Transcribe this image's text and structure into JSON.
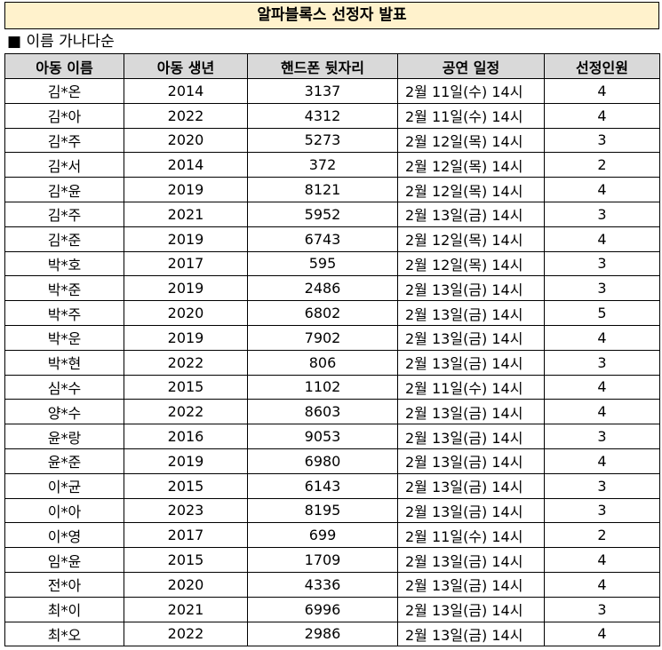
{
  "header": {
    "title": "알파블록스 선정자 발표",
    "subtitle": "■ 이름 가나다순"
  },
  "table": {
    "columns": [
      "아동 이름",
      "아동 생년",
      "핸드폰 뒷자리",
      "공연 일정",
      "선정인원"
    ],
    "rows": [
      [
        "김*온",
        2014,
        3137,
        "2월 11일(수) 14시",
        4
      ],
      [
        "김*아",
        2022,
        4312,
        "2월 11일(수) 14시",
        4
      ],
      [
        "김*주",
        2020,
        5273,
        "2월 12일(목) 14시",
        3
      ],
      [
        "김*서",
        2014,
        372,
        "2월 12일(목) 14시",
        2
      ],
      [
        "김*윤",
        2019,
        8121,
        "2월 12일(목) 14시",
        4
      ],
      [
        "김*주",
        2021,
        5952,
        "2월 13일(금) 14시",
        3
      ],
      [
        "김*준",
        2019,
        6743,
        "2월 12일(목) 14시",
        4
      ],
      [
        "박*호",
        2017,
        595,
        "2월 12일(목) 14시",
        3
      ],
      [
        "박*준",
        2019,
        2486,
        "2월 13일(금) 14시",
        3
      ],
      [
        "박*주",
        2020,
        6802,
        "2월 13일(금) 14시",
        5
      ],
      [
        "박*운",
        2019,
        7902,
        "2월 13일(금) 14시",
        4
      ],
      [
        "박*현",
        2022,
        806,
        "2월 13일(금) 14시",
        3
      ],
      [
        "심*수",
        2015,
        1102,
        "2월 11일(수) 14시",
        4
      ],
      [
        "양*수",
        2022,
        8603,
        "2월 13일(금) 14시",
        4
      ],
      [
        "윤*랑",
        2016,
        9053,
        "2월 13일(금) 14시",
        3
      ],
      [
        "윤*준",
        2019,
        6980,
        "2월 13일(금) 14시",
        4
      ],
      [
        "이*균",
        2015,
        6143,
        "2월 13일(금) 14시",
        3
      ],
      [
        "이*아",
        2023,
        8195,
        "2월 13일(금) 14시",
        3
      ],
      [
        "이*영",
        2017,
        699,
        "2월 11일(수) 14시",
        2
      ],
      [
        "임*윤",
        2015,
        1709,
        "2월 13일(금) 14시",
        4
      ],
      [
        "전*아",
        2020,
        4336,
        "2월 13일(금) 14시",
        4
      ],
      [
        "최*이",
        2021,
        6996,
        "2월 13일(금) 14시",
        3
      ],
      [
        "최*오",
        2022,
        2986,
        "2월 13일(금) 14시",
        4
      ]
    ]
  }
}
